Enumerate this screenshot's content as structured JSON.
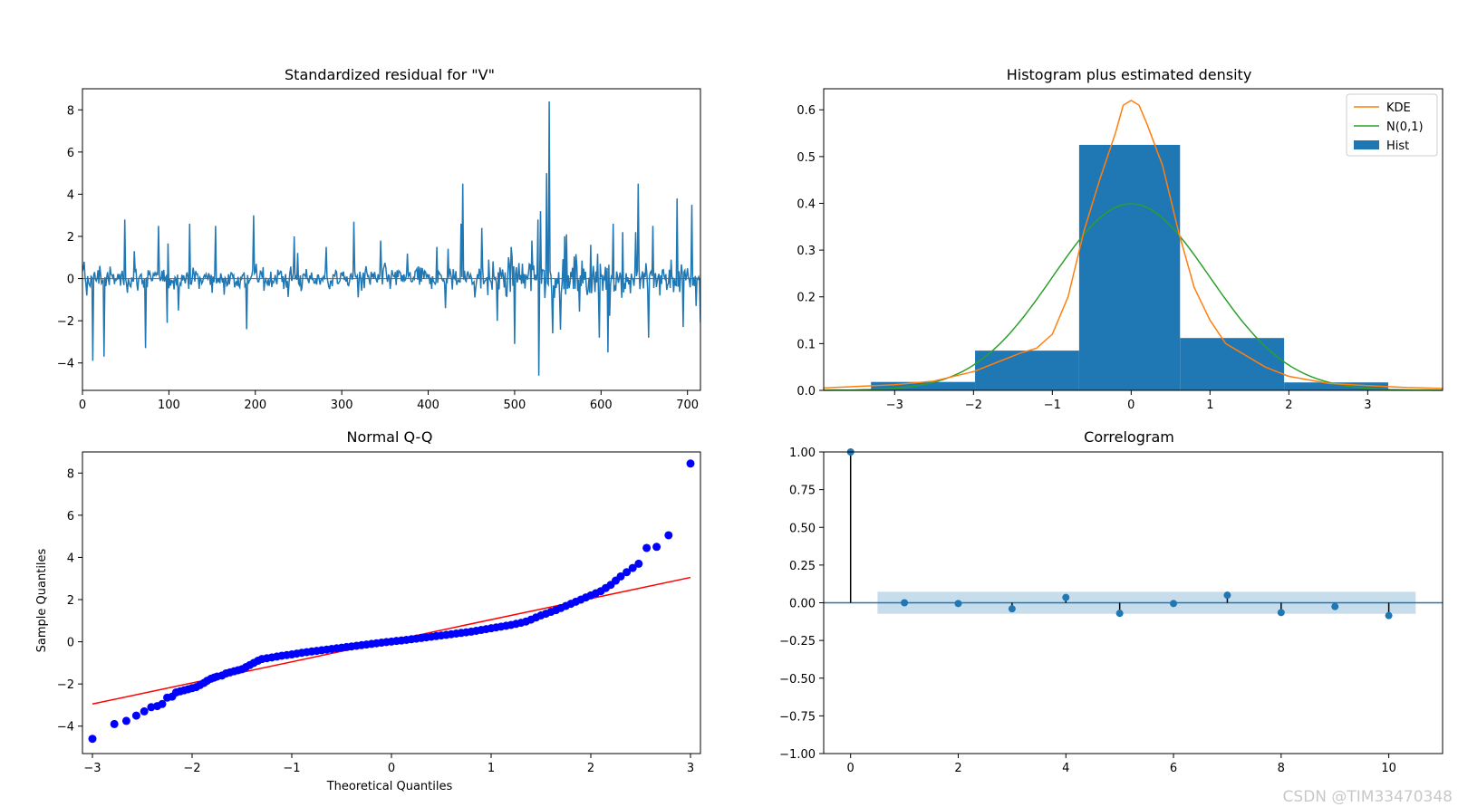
{
  "watermark": "CSDN @TIM33470348",
  "chart_data": [
    {
      "type": "line",
      "title": "Standardized residual for \"V\"",
      "xlabel": "",
      "ylabel": "",
      "xlim": [
        0,
        715
      ],
      "ylim": [
        -5.3,
        9.0
      ],
      "xticks": [
        0,
        100,
        200,
        300,
        400,
        500,
        600,
        700
      ],
      "yticks": [
        -4,
        -2,
        0,
        2,
        4,
        6,
        8
      ],
      "ytick_labels": [
        "−4",
        "−2",
        "0",
        "2",
        "4",
        "6",
        "8"
      ],
      "series_color": "#1f77b4",
      "zero_line": 0,
      "n_points": 716,
      "spikes": [
        {
          "x": 2,
          "y": 0.8
        },
        {
          "x": 5,
          "y": -0.8
        },
        {
          "x": 12,
          "y": -3.9
        },
        {
          "x": 20,
          "y": 0.6
        },
        {
          "x": 25,
          "y": -3.7
        },
        {
          "x": 49,
          "y": 2.8
        },
        {
          "x": 60,
          "y": 1.3
        },
        {
          "x": 73,
          "y": -3.3
        },
        {
          "x": 88,
          "y": 2.5
        },
        {
          "x": 98,
          "y": -2.1
        },
        {
          "x": 124,
          "y": 2.6
        },
        {
          "x": 154,
          "y": 2.5
        },
        {
          "x": 190,
          "y": -2.4
        },
        {
          "x": 198,
          "y": 3.0
        },
        {
          "x": 245,
          "y": 2.0
        },
        {
          "x": 282,
          "y": 1.5
        },
        {
          "x": 314,
          "y": 2.7
        },
        {
          "x": 345,
          "y": 1.8
        },
        {
          "x": 410,
          "y": 1.5
        },
        {
          "x": 420,
          "y": -1.4
        },
        {
          "x": 438,
          "y": 2.6
        },
        {
          "x": 440,
          "y": 4.5
        },
        {
          "x": 462,
          "y": 2.4
        },
        {
          "x": 480,
          "y": -2.0
        },
        {
          "x": 496,
          "y": 1.5
        },
        {
          "x": 500,
          "y": -3.1
        },
        {
          "x": 520,
          "y": 1.8
        },
        {
          "x": 527,
          "y": 2.8
        },
        {
          "x": 528,
          "y": -4.6
        },
        {
          "x": 530,
          "y": 3.2
        },
        {
          "x": 537,
          "y": 5.0
        },
        {
          "x": 540,
          "y": 8.4
        },
        {
          "x": 544,
          "y": -2.6
        },
        {
          "x": 560,
          "y": 2.1
        },
        {
          "x": 588,
          "y": 1.6
        },
        {
          "x": 598,
          "y": -2.8
        },
        {
          "x": 608,
          "y": -3.5
        },
        {
          "x": 614,
          "y": 2.6
        },
        {
          "x": 625,
          "y": 2.2
        },
        {
          "x": 640,
          "y": 2.2
        },
        {
          "x": 643,
          "y": 4.5
        },
        {
          "x": 655,
          "y": -2.8
        },
        {
          "x": 660,
          "y": 2.5
        },
        {
          "x": 688,
          "y": 3.8
        },
        {
          "x": 695,
          "y": -2.3
        },
        {
          "x": 705,
          "y": 3.5
        },
        {
          "x": 710,
          "y": -1.3
        },
        {
          "x": 715,
          "y": -2.1
        }
      ]
    },
    {
      "type": "bar",
      "title": "Histogram plus estimated density",
      "xlabel": "",
      "ylabel": "",
      "xlim": [
        -3.9,
        3.95
      ],
      "ylim": [
        0,
        0.645
      ],
      "xticks": [
        -3,
        -2,
        -1,
        0,
        1,
        2,
        3
      ],
      "xtick_labels": [
        "−3",
        "−2",
        "−1",
        "0",
        "1",
        "2",
        "3"
      ],
      "yticks": [
        0.0,
        0.1,
        0.2,
        0.3,
        0.4,
        0.5,
        0.6
      ],
      "ytick_labels": [
        "0.0",
        "0.1",
        "0.2",
        "0.3",
        "0.4",
        "0.5",
        "0.6"
      ],
      "bins": [
        {
          "x0": -3.3,
          "x1": -1.98,
          "value": 0.018
        },
        {
          "x0": -1.98,
          "x1": -0.66,
          "value": 0.085
        },
        {
          "x0": -0.66,
          "x1": 0.62,
          "value": 0.525
        },
        {
          "x0": 0.62,
          "x1": 1.94,
          "value": 0.112
        },
        {
          "x0": 1.94,
          "x1": 3.26,
          "value": 0.017
        }
      ],
      "hist_color": "#1f77b4",
      "kde": {
        "color": "#ff7f0e",
        "x": [
          -3.9,
          -3.0,
          -2.5,
          -2.0,
          -1.7,
          -1.4,
          -1.2,
          -1.0,
          -0.8,
          -0.6,
          -0.4,
          -0.2,
          -0.1,
          0.0,
          0.1,
          0.2,
          0.4,
          0.6,
          0.8,
          1.0,
          1.2,
          1.4,
          1.7,
          2.0,
          2.5,
          3.0,
          3.5,
          3.95
        ],
        "y": [
          0.005,
          0.012,
          0.02,
          0.04,
          0.06,
          0.08,
          0.09,
          0.12,
          0.2,
          0.34,
          0.45,
          0.55,
          0.61,
          0.62,
          0.61,
          0.57,
          0.48,
          0.34,
          0.22,
          0.15,
          0.1,
          0.08,
          0.05,
          0.03,
          0.015,
          0.01,
          0.006,
          0.004
        ]
      },
      "normal": {
        "color": "#2ca02c",
        "mean": 0,
        "std": 1
      },
      "legend": [
        {
          "label": "KDE",
          "color": "#ff7f0e",
          "kind": "line"
        },
        {
          "label": "N(0,1)",
          "color": "#2ca02c",
          "kind": "line"
        },
        {
          "label": "Hist",
          "color": "#1f77b4",
          "kind": "patch"
        }
      ],
      "legend_position": "upper-right"
    },
    {
      "type": "scatter",
      "title": "Normal Q-Q",
      "xlabel": "Theoretical Quantiles",
      "ylabel": "Sample Quantiles",
      "xlim": [
        -3.1,
        3.1
      ],
      "ylim": [
        -5.3,
        9.0
      ],
      "xticks": [
        -3,
        -2,
        -1,
        0,
        1,
        2,
        3
      ],
      "xtick_labels": [
        "−3",
        "−2",
        "−1",
        "0",
        "1",
        "2",
        "3"
      ],
      "yticks": [
        -4,
        -2,
        0,
        2,
        4,
        6,
        8
      ],
      "ytick_labels": [
        "−4",
        "−2",
        "0",
        "2",
        "4",
        "6",
        "8"
      ],
      "marker_color": "#0000ff",
      "reference_line": {
        "color": "#ff0000",
        "x": [
          -3.0,
          3.0
        ],
        "y": [
          -2.95,
          3.05
        ]
      },
      "points": [
        [
          -3.0,
          -4.6
        ],
        [
          -2.78,
          -3.9
        ],
        [
          -2.66,
          -3.75
        ],
        [
          -2.56,
          -3.5
        ],
        [
          -2.48,
          -3.3
        ],
        [
          -2.41,
          -3.1
        ],
        [
          -2.35,
          -3.05
        ],
        [
          -2.3,
          -2.95
        ],
        [
          -2.25,
          -2.65
        ],
        [
          -2.2,
          -2.6
        ],
        [
          -2.16,
          -2.4
        ],
        [
          -2.12,
          -2.35
        ],
        [
          -2.08,
          -2.3
        ],
        [
          -2.04,
          -2.25
        ],
        [
          -2.0,
          -2.2
        ],
        [
          -1.96,
          -2.15
        ],
        [
          -1.92,
          -2.05
        ],
        [
          -1.88,
          -1.95
        ],
        [
          -1.85,
          -1.85
        ],
        [
          -1.81,
          -1.75
        ],
        [
          -1.78,
          -1.7
        ],
        [
          -1.75,
          -1.65
        ],
        [
          -1.7,
          -1.6
        ],
        [
          -1.66,
          -1.5
        ],
        [
          -1.62,
          -1.45
        ],
        [
          -1.58,
          -1.4
        ],
        [
          -1.54,
          -1.35
        ],
        [
          -1.5,
          -1.3
        ],
        [
          -1.46,
          -1.2
        ],
        [
          -1.42,
          -1.1
        ],
        [
          -1.38,
          -1.0
        ],
        [
          -1.34,
          -0.9
        ],
        [
          -1.3,
          -0.82
        ],
        [
          -1.25,
          -0.78
        ],
        [
          -1.2,
          -0.74
        ],
        [
          -1.15,
          -0.7
        ],
        [
          -1.1,
          -0.66
        ],
        [
          -1.05,
          -0.63
        ],
        [
          -1.0,
          -0.6
        ],
        [
          -0.95,
          -0.56
        ],
        [
          -0.9,
          -0.52
        ],
        [
          -0.85,
          -0.49
        ],
        [
          -0.8,
          -0.46
        ],
        [
          -0.75,
          -0.43
        ],
        [
          -0.7,
          -0.4
        ],
        [
          -0.65,
          -0.37
        ],
        [
          -0.6,
          -0.34
        ],
        [
          -0.55,
          -0.31
        ],
        [
          -0.5,
          -0.28
        ],
        [
          -0.45,
          -0.25
        ],
        [
          -0.4,
          -0.22
        ],
        [
          -0.35,
          -0.19
        ],
        [
          -0.3,
          -0.16
        ],
        [
          -0.25,
          -0.13
        ],
        [
          -0.2,
          -0.1
        ],
        [
          -0.15,
          -0.07
        ],
        [
          -0.1,
          -0.04
        ],
        [
          -0.05,
          -0.01
        ],
        [
          0.0,
          0.01
        ],
        [
          0.05,
          0.04
        ],
        [
          0.1,
          0.06
        ],
        [
          0.15,
          0.09
        ],
        [
          0.2,
          0.12
        ],
        [
          0.25,
          0.15
        ],
        [
          0.3,
          0.18
        ],
        [
          0.35,
          0.21
        ],
        [
          0.4,
          0.24
        ],
        [
          0.45,
          0.27
        ],
        [
          0.5,
          0.3
        ],
        [
          0.55,
          0.33
        ],
        [
          0.6,
          0.36
        ],
        [
          0.65,
          0.39
        ],
        [
          0.7,
          0.42
        ],
        [
          0.75,
          0.45
        ],
        [
          0.8,
          0.48
        ],
        [
          0.85,
          0.52
        ],
        [
          0.9,
          0.56
        ],
        [
          0.95,
          0.6
        ],
        [
          1.0,
          0.64
        ],
        [
          1.05,
          0.68
        ],
        [
          1.1,
          0.72
        ],
        [
          1.15,
          0.76
        ],
        [
          1.2,
          0.8
        ],
        [
          1.25,
          0.85
        ],
        [
          1.3,
          0.9
        ],
        [
          1.35,
          0.96
        ],
        [
          1.4,
          1.05
        ],
        [
          1.45,
          1.15
        ],
        [
          1.5,
          1.25
        ],
        [
          1.55,
          1.33
        ],
        [
          1.6,
          1.42
        ],
        [
          1.65,
          1.5
        ],
        [
          1.7,
          1.6
        ],
        [
          1.75,
          1.7
        ],
        [
          1.8,
          1.8
        ],
        [
          1.85,
          1.9
        ],
        [
          1.9,
          2.0
        ],
        [
          1.95,
          2.1
        ],
        [
          2.0,
          2.2
        ],
        [
          2.05,
          2.3
        ],
        [
          2.1,
          2.4
        ],
        [
          2.15,
          2.55
        ],
        [
          2.2,
          2.7
        ],
        [
          2.25,
          2.9
        ],
        [
          2.3,
          3.1
        ],
        [
          2.36,
          3.3
        ],
        [
          2.42,
          3.5
        ],
        [
          2.48,
          3.7
        ],
        [
          2.56,
          4.45
        ],
        [
          2.66,
          4.5
        ],
        [
          2.78,
          5.05
        ],
        [
          3.0,
          8.45
        ]
      ]
    },
    {
      "type": "scatter",
      "title": "Correlogram",
      "xlabel": "",
      "ylabel": "",
      "xlim": [
        -0.5,
        11.0
      ],
      "ylim": [
        -1.0,
        1.0
      ],
      "xticks": [
        0,
        2,
        4,
        6,
        8,
        10
      ],
      "yticks": [
        -1.0,
        -0.75,
        -0.5,
        -0.25,
        0.0,
        0.25,
        0.5,
        0.75,
        1.0
      ],
      "ytick_labels": [
        "−1.00",
        "−0.75",
        "−0.50",
        "−0.25",
        "0.00",
        "0.25",
        "0.50",
        "0.75",
        "1.00"
      ],
      "marker_color": "#1f77b4",
      "confidence_band": {
        "x0": 0.5,
        "x1": 10.5,
        "y0": -0.073,
        "y1": 0.073,
        "color": "#1f77b4"
      },
      "lags": [
        0,
        1,
        2,
        3,
        4,
        5,
        6,
        7,
        8,
        9,
        10
      ],
      "acf": [
        1.0,
        0.0,
        -0.005,
        -0.04,
        0.035,
        -0.07,
        -0.005,
        0.05,
        -0.065,
        -0.025,
        -0.085
      ]
    }
  ]
}
